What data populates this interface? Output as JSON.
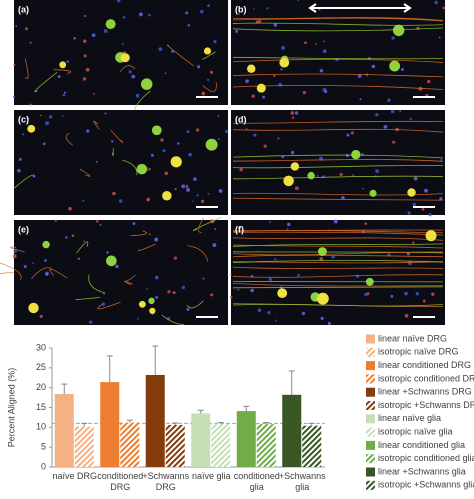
{
  "panels": [
    "(a)",
    "(b)",
    "(c)",
    "(d)",
    "(e)",
    "(f)"
  ],
  "chart_data": {
    "type": "bar",
    "y_label": "Percent Aligned (%)",
    "categories": [
      "naïve DRG",
      "conditioned DRG",
      "+Schwanns DRG",
      "naïve glia",
      "conditioned glia",
      "+Schwanns glia"
    ],
    "ylim": [
      0,
      30
    ],
    "yticks": [
      0,
      5,
      10,
      15,
      20,
      25,
      30
    ],
    "reference_line": 11,
    "series": [
      {
        "name": "linear naïve DRG",
        "color": "#f4b183",
        "values": [
          18.4,
          null,
          null,
          null,
          null,
          null
        ],
        "errors": [
          2.5,
          null,
          null,
          null,
          null,
          null
        ]
      },
      {
        "name": "isotropic naïve DRG",
        "color": "#f4b183",
        "pattern": "hatch",
        "values": [
          10.2,
          null,
          null,
          null,
          null,
          null
        ],
        "errors": [
          0.8,
          null,
          null,
          null,
          null,
          null
        ]
      },
      {
        "name": "linear conditioned DRG",
        "color": "#ed7d31",
        "values": [
          null,
          21.4,
          null,
          null,
          null,
          null
        ],
        "errors": [
          null,
          6.6,
          null,
          null,
          null,
          null
        ]
      },
      {
        "name": "isotropic conditioned DRG",
        "color": "#ed7d31",
        "pattern": "hatch",
        "values": [
          null,
          11.2,
          null,
          null,
          null,
          null
        ],
        "errors": [
          null,
          0.6,
          null,
          null,
          null,
          null
        ]
      },
      {
        "name": "linear +Schwanns DRG",
        "color": "#843c0c",
        "values": [
          null,
          null,
          23.2,
          null,
          null,
          null
        ],
        "errors": [
          null,
          null,
          7.3,
          null,
          null,
          null
        ]
      },
      {
        "name": "isotropic +Schwanns DRG",
        "color": "#843c0c",
        "pattern": "hatch",
        "values": [
          null,
          null,
          10.6,
          null,
          null,
          null
        ],
        "errors": [
          null,
          null,
          0.5,
          null,
          null,
          null
        ]
      },
      {
        "name": "linear naïve glia",
        "color": "#c5e0b4",
        "values": [
          null,
          null,
          null,
          13.5,
          null,
          null
        ],
        "errors": [
          null,
          null,
          null,
          0.8,
          null,
          null
        ]
      },
      {
        "name": "isotropic naïve glia",
        "color": "#c5e0b4",
        "pattern": "hatch",
        "values": [
          null,
          null,
          null,
          10.9,
          null,
          null
        ],
        "errors": [
          null,
          null,
          null,
          0.3,
          null,
          null
        ]
      },
      {
        "name": "linear conditioned glia",
        "color": "#70ad47",
        "values": [
          null,
          null,
          null,
          null,
          14.1,
          null
        ],
        "errors": [
          null,
          null,
          null,
          null,
          1.2,
          null
        ]
      },
      {
        "name": "isotropic conditioned glia",
        "color": "#70ad47",
        "pattern": "hatch",
        "values": [
          null,
          null,
          null,
          null,
          10.8,
          null
        ],
        "errors": [
          null,
          null,
          null,
          null,
          0.4,
          null
        ]
      },
      {
        "name": "linear +Schwanns glia",
        "color": "#385723",
        "values": [
          null,
          null,
          null,
          null,
          null,
          18.2
        ],
        "errors": [
          null,
          null,
          null,
          null,
          null,
          6.0
        ]
      },
      {
        "name": "isotropic +Schwanns glia",
        "color": "#385723",
        "pattern": "hatch",
        "values": [
          null,
          null,
          null,
          null,
          null,
          10.4
        ],
        "errors": [
          null,
          null,
          null,
          null,
          null,
          0.6
        ]
      }
    ]
  }
}
